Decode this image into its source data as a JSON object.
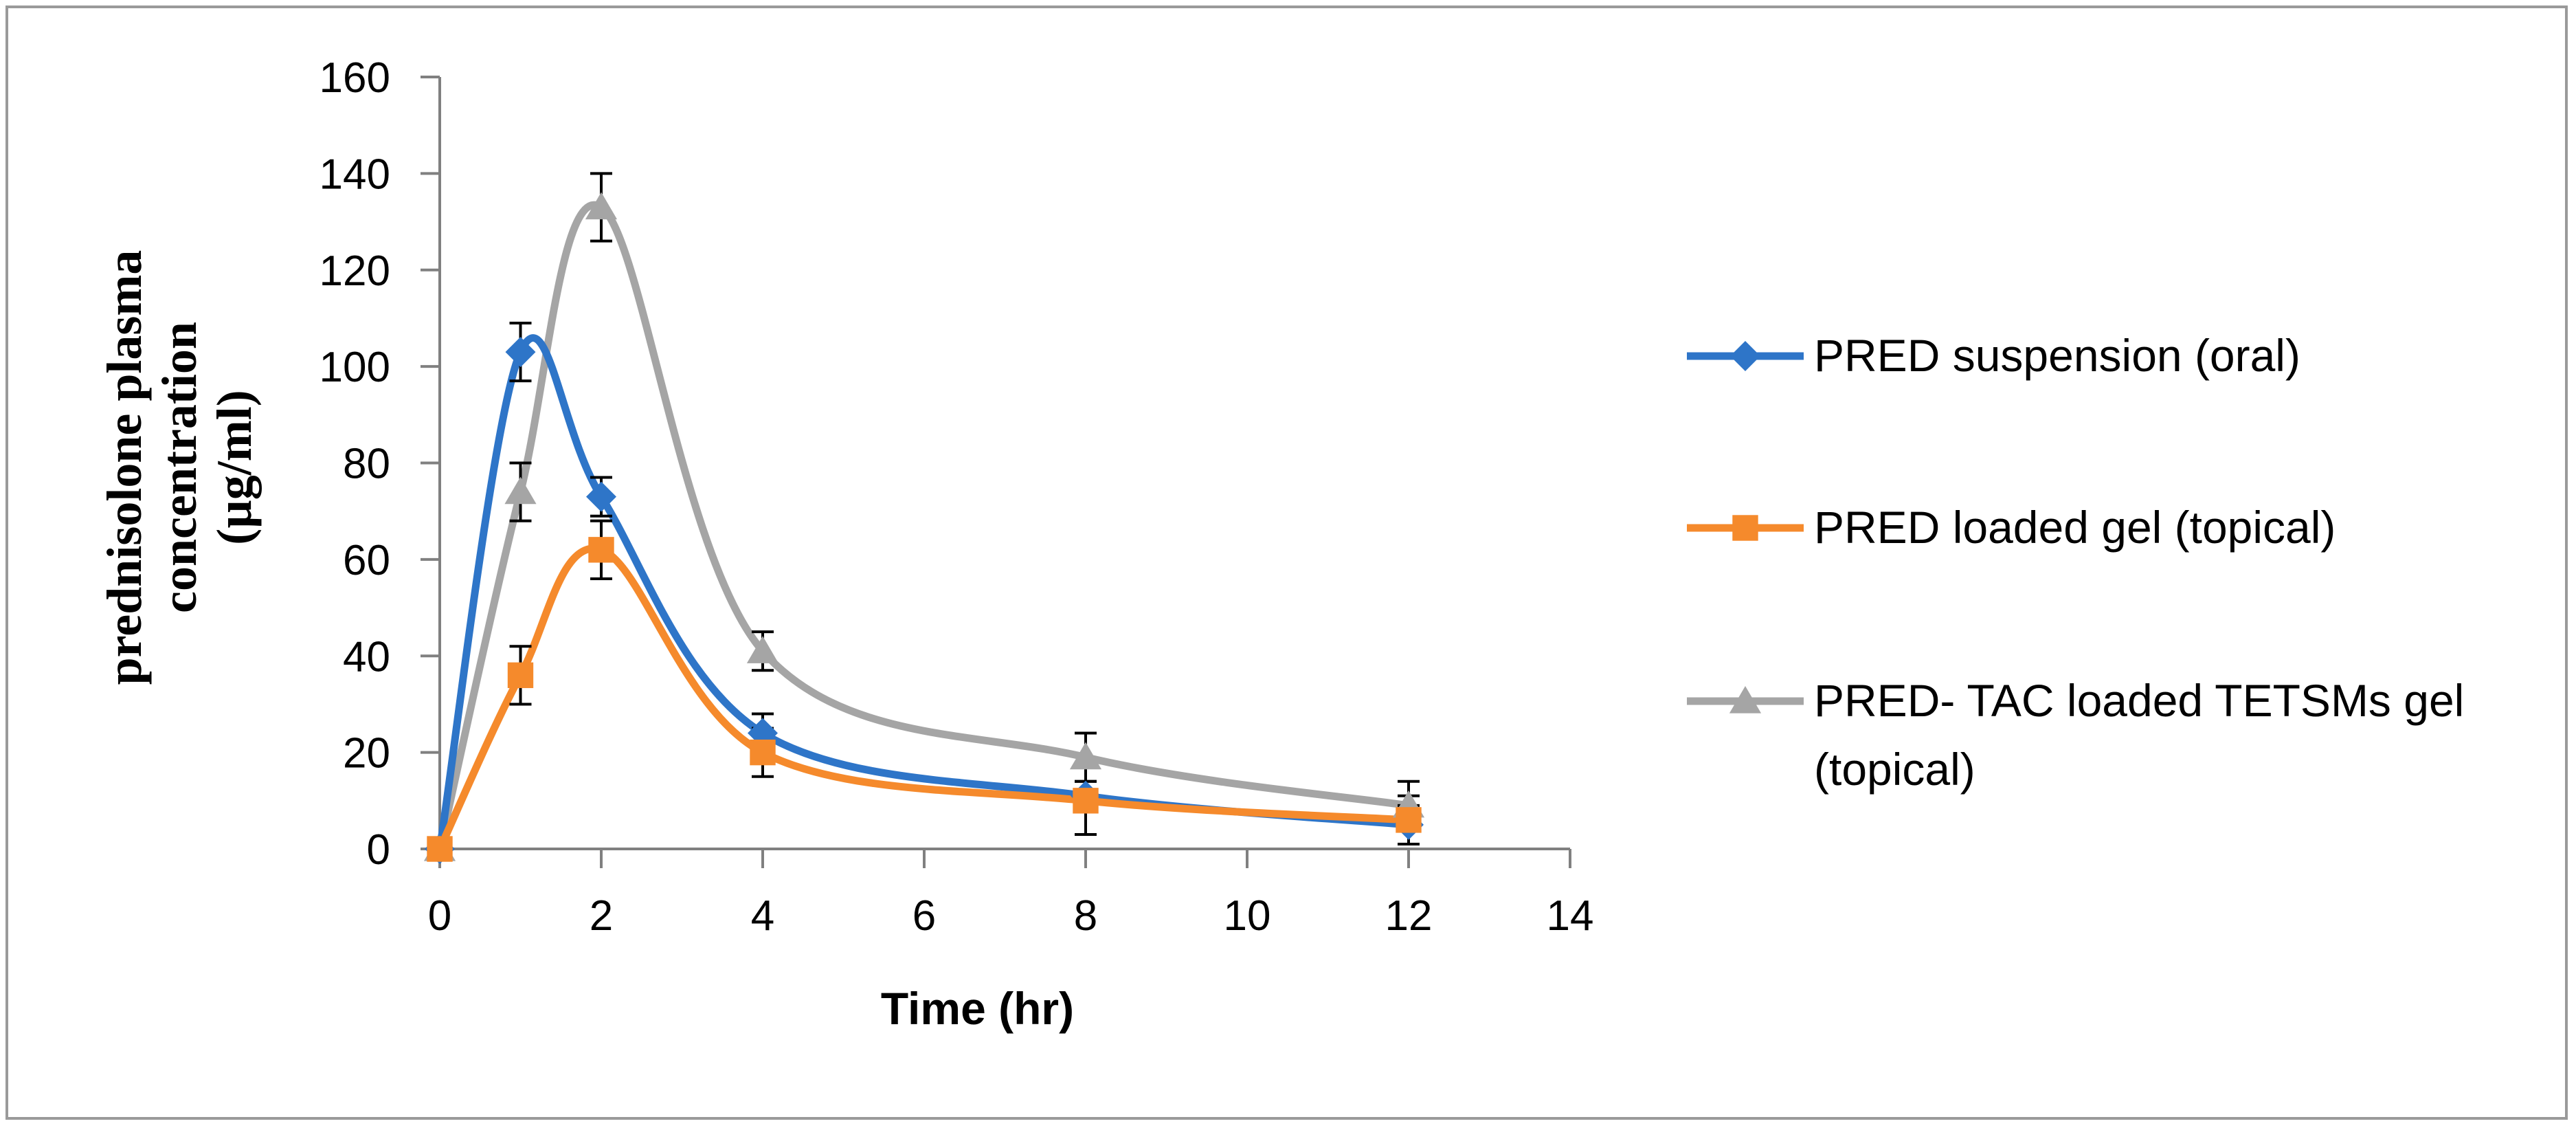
{
  "chart_data": {
    "type": "line",
    "title": "",
    "xlabel": "Time (hr)",
    "ylabel_lines": [
      "prednisolone plasma",
      "concentration",
      "(µg/ml)"
    ],
    "xlim": [
      0,
      14
    ],
    "ylim": [
      0,
      160
    ],
    "xticks": [
      0,
      2,
      4,
      6,
      8,
      10,
      12,
      14
    ],
    "yticks": [
      0,
      20,
      40,
      60,
      80,
      100,
      120,
      140,
      160
    ],
    "x": [
      0,
      1,
      2,
      4,
      8,
      12
    ],
    "smooth": true,
    "error_bars": true,
    "legend_position": "right",
    "series": [
      {
        "name": "PRED suspension (oral)",
        "color": "#2E75C8",
        "marker": "diamond",
        "values": [
          0,
          103,
          73,
          24,
          11,
          5
        ],
        "errors": [
          0,
          6,
          4,
          4,
          3,
          4
        ]
      },
      {
        "name": "PRED loaded gel (topical)",
        "color": "#F58A2C",
        "marker": "square",
        "values": [
          0,
          36,
          62,
          20,
          10,
          6
        ],
        "errors": [
          0,
          6,
          6,
          5,
          7,
          5
        ]
      },
      {
        "name": "PRED- TAC loaded TETSMs gel (topical)",
        "name_lines": [
          "PRED- TAC loaded TETSMs gel",
          "(topical)"
        ],
        "color": "#A5A5A5",
        "marker": "triangle",
        "values": [
          0,
          74,
          133,
          41,
          19,
          9
        ],
        "errors": [
          0,
          6,
          7,
          4,
          5,
          5
        ]
      }
    ]
  }
}
